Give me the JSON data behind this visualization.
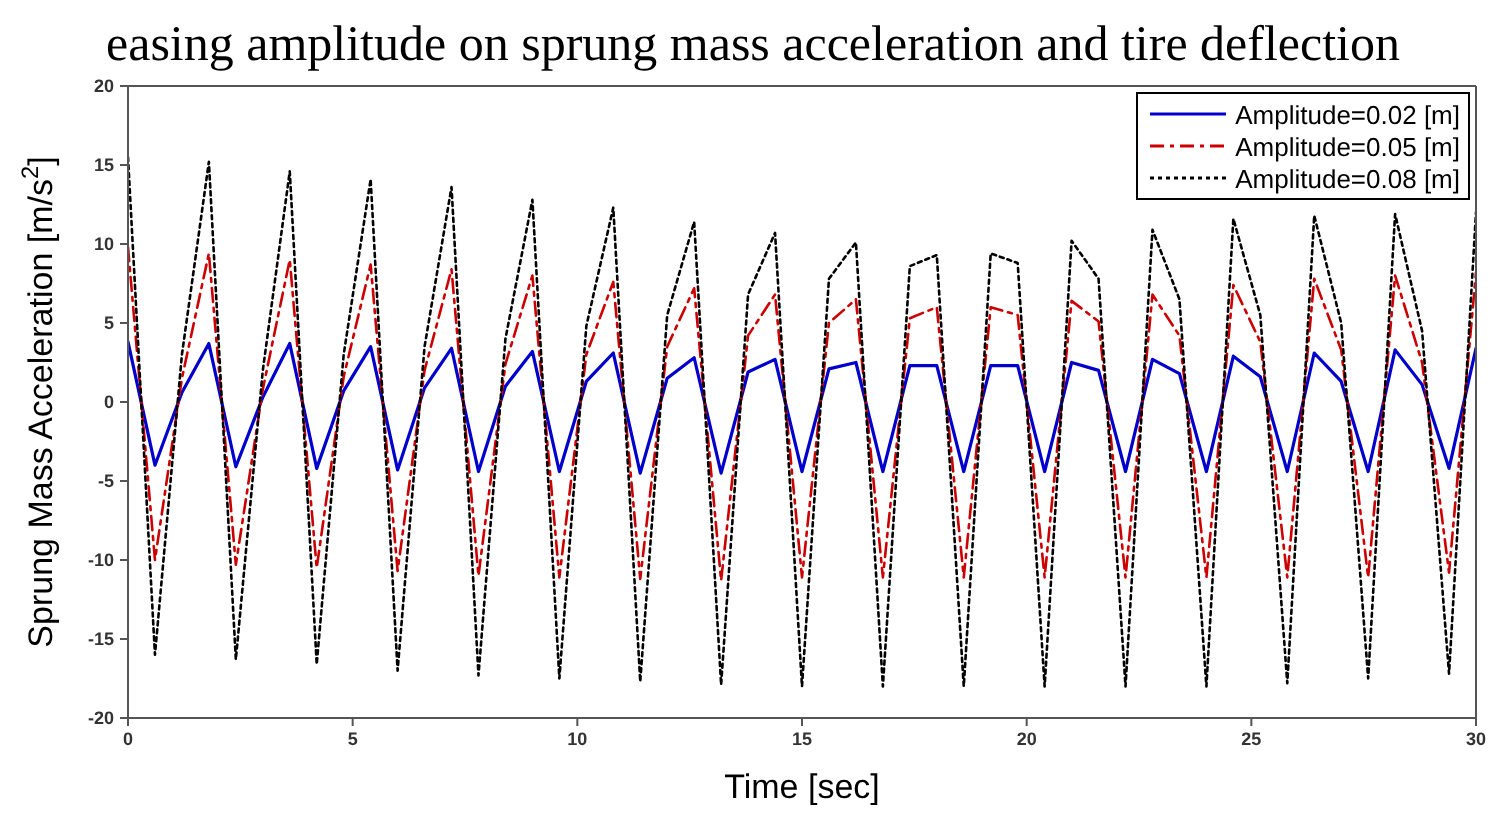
{
  "chart_data": {
    "type": "line",
    "title": "easing amplitude on sprung mass acceleration and tire deflection",
    "xlabel": "Time [sec]",
    "ylabel": "Sprung Mass Acceleration [m/s$^{2}$]",
    "x": [
      0,
      0.6,
      1.2,
      1.8,
      2.4,
      3,
      3.6,
      4.2,
      4.8,
      5.4,
      6,
      6.6,
      7.2,
      7.8,
      8.4,
      9,
      9.6,
      10.2,
      10.8,
      11.4,
      12,
      12.6,
      13.2,
      13.8,
      14.4,
      15,
      15.6,
      16.2,
      16.8,
      17.4,
      18,
      18.6,
      19.2,
      19.8,
      20.4,
      21,
      21.6,
      22.2,
      22.8,
      23.4,
      24,
      24.6,
      25.2,
      25.8,
      26.4,
      27,
      27.6,
      28.2,
      28.8,
      29.4,
      30
    ],
    "series": [
      {
        "name": "Amplitude=0.02 [m]",
        "color": "#0000cc",
        "line_style": "solid",
        "values": [
          3.8,
          -4.0,
          0.6,
          3.7,
          -4.1,
          0.3,
          3.7,
          -4.2,
          0.7,
          3.5,
          -4.3,
          0.9,
          3.4,
          -4.4,
          1.0,
          3.2,
          -4.4,
          1.3,
          3.1,
          -4.5,
          1.5,
          2.8,
          -4.5,
          1.9,
          2.7,
          -4.4,
          2.1,
          2.5,
          -4.4,
          2.3,
          2.3,
          -4.4,
          2.3,
          2.3,
          -4.4,
          2.5,
          2.0,
          -4.4,
          2.7,
          1.8,
          -4.4,
          2.9,
          1.6,
          -4.4,
          3.1,
          1.3,
          -4.4,
          3.3,
          1.1,
          -4.2,
          3.4
        ]
      },
      {
        "name": "Amplitude=0.05 [m]",
        "color": "#cc0000",
        "line_style": "dashed",
        "values": [
          9.8,
          -10.0,
          1.5,
          9.4,
          -10.3,
          0.8,
          9.0,
          -10.5,
          1.6,
          8.7,
          -10.7,
          2.0,
          8.4,
          -11.0,
          2.4,
          8.0,
          -11.1,
          3.0,
          7.6,
          -11.2,
          3.5,
          7.2,
          -11.3,
          4.2,
          6.8,
          -11.1,
          5.0,
          6.5,
          -11.1,
          5.3,
          6.0,
          -11.1,
          6.0,
          5.5,
          -11.1,
          6.4,
          5.1,
          -11.1,
          6.8,
          4.2,
          -11.1,
          7.4,
          3.8,
          -11.1,
          7.8,
          3.3,
          -11.1,
          8.0,
          2.5,
          -10.8,
          8.2
        ]
      },
      {
        "name": "Amplitude=0.08 [m]",
        "color": "#000000",
        "line_style": "dotted",
        "values": [
          15.5,
          -16.0,
          3.0,
          15.2,
          -16.3,
          2.0,
          14.6,
          -16.6,
          3.0,
          14.1,
          -17.0,
          3.5,
          13.6,
          -17.3,
          4.0,
          12.8,
          -17.5,
          4.8,
          12.3,
          -17.7,
          5.5,
          11.4,
          -17.9,
          6.8,
          10.7,
          -18.0,
          7.8,
          10.1,
          -18.0,
          8.6,
          9.3,
          -18.0,
          9.4,
          8.8,
          -18.0,
          10.2,
          7.8,
          -18.0,
          10.9,
          6.5,
          -18.0,
          11.6,
          5.5,
          -17.8,
          11.8,
          5.0,
          -17.5,
          11.9,
          4.5,
          -17.2,
          12.0
        ]
      }
    ],
    "xlim": [
      0,
      30
    ],
    "xticks": [
      0,
      5,
      10,
      15,
      20,
      25,
      30
    ],
    "ylim": [
      -20,
      20
    ],
    "yticks": [
      -20,
      -15,
      -10,
      -5,
      0,
      5,
      10,
      15,
      20
    ],
    "grid": false,
    "legend": "top right",
    "marker": "none"
  }
}
